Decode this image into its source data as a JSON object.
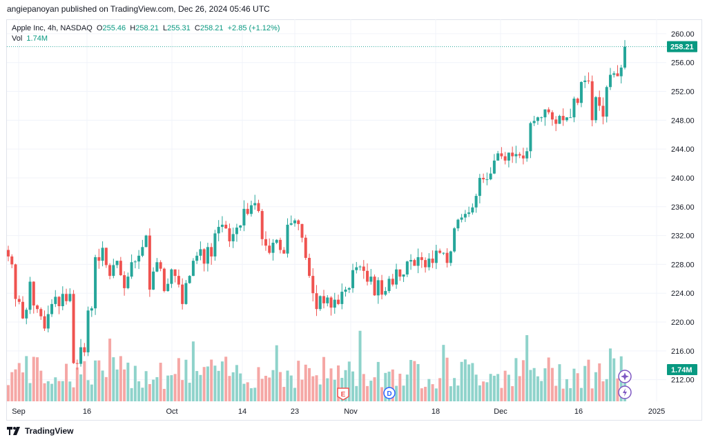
{
  "header": {
    "text": "angiepanoyan published on TradingView.com, Dec 26, 2024 05:46 UTC"
  },
  "legend": {
    "symbol": "Apple Inc, 4h, NASDAQ",
    "o_label": "O",
    "o_value": "255.46",
    "h_label": "H",
    "h_value": "258.21",
    "l_label": "L",
    "l_value": "255.31",
    "c_label": "C",
    "c_value": "258.21",
    "change": "+2.85 (+1.12%)",
    "vol_label": "Vol",
    "vol_value": "1.74M"
  },
  "last_price_badge": "258.21",
  "volume_badge": "1.74M",
  "event_markers": {
    "earnings": "E",
    "dividend": "D"
  },
  "footer": {
    "brand": "TradingView"
  },
  "colors": {
    "up": "#26a69a",
    "down": "#ef5350",
    "up_vol": "#8fd3cb",
    "down_vol": "#f5a7a5",
    "grid": "#f0f3fa",
    "text": "#131722",
    "badge": "#089981",
    "marker_purple": "#7e57c2"
  },
  "chart_data": {
    "type": "candlestick",
    "symbol": "AAPL",
    "interval": "4h",
    "y_ticks": [
      "212.00",
      "216.00",
      "220.00",
      "224.00",
      "228.00",
      "232.00",
      "236.00",
      "240.00",
      "244.00",
      "248.00",
      "252.00",
      "256.00",
      "260.00"
    ],
    "x_ticks": [
      "Sep",
      "16",
      "Oct",
      "14",
      "23",
      "Nov",
      "18",
      "Dec",
      "16",
      "2025"
    ],
    "ylim": [
      209,
      262
    ],
    "grid": true,
    "closes": [
      229.1,
      228.0,
      223.2,
      222.8,
      220.5,
      221.7,
      225.6,
      222.3,
      221.8,
      220.8,
      219.1,
      221.1,
      222.5,
      223.5,
      222.2,
      223.9,
      222.9,
      223.9,
      214.3,
      214.2,
      216.5,
      215.8,
      221.6,
      221.9,
      229.0,
      228.5,
      230.3,
      227.9,
      226.4,
      227.9,
      228.5,
      226.5,
      224.7,
      226.3,
      228.3,
      228.4,
      229.2,
      230.4,
      232.0,
      224.5,
      227.0,
      228.3,
      227.4,
      224.3,
      225.3,
      227.3,
      226.4,
      225.2,
      222.5,
      225.4,
      226.4,
      228.5,
      229.2,
      230.1,
      228.1,
      230.4,
      229.1,
      232.3,
      233.2,
      233.5,
      233.0,
      231.2,
      232.2,
      233.1,
      233.4,
      235.7,
      235.0,
      236.2,
      236.5,
      235.4,
      231.5,
      230.6,
      229.6,
      231.0,
      231.4,
      230.0,
      229.5,
      233.5,
      233.7,
      234.1,
      233.6,
      231.7,
      228.9,
      226.4,
      224.0,
      221.8,
      223.6,
      222.6,
      223.4,
      222.0,
      223.1,
      222.5,
      224.2,
      224.5,
      224.7,
      227.2,
      227.6,
      227.7,
      227.1,
      225.6,
      226.3,
      223.7,
      225.8,
      223.8,
      224.3,
      226.0,
      225.2,
      227.3,
      226.3,
      226.6,
      228.4,
      228.6,
      227.8,
      229.0,
      228.6,
      227.6,
      228.8,
      228.2,
      229.9,
      229.6,
      229.6,
      228.2,
      229.8,
      233.0,
      234.2,
      234.5,
      235.0,
      235.2,
      235.9,
      237.5,
      240.0,
      239.8,
      239.8,
      240.6,
      242.4,
      243.4,
      243.0,
      242.4,
      243.5,
      243.0,
      243.3,
      243.1,
      242.7,
      243.7,
      247.6,
      247.9,
      248.4,
      248.4,
      249.5,
      249.1,
      248.1,
      247.5,
      248.6,
      248.0,
      248.4,
      248.4,
      251.0,
      250.4,
      253.3,
      253.5,
      253.4,
      248.0,
      251.2,
      250.0,
      248.5,
      252.6,
      254.3,
      254.5,
      254.1,
      255.3,
      258.21
    ]
  }
}
